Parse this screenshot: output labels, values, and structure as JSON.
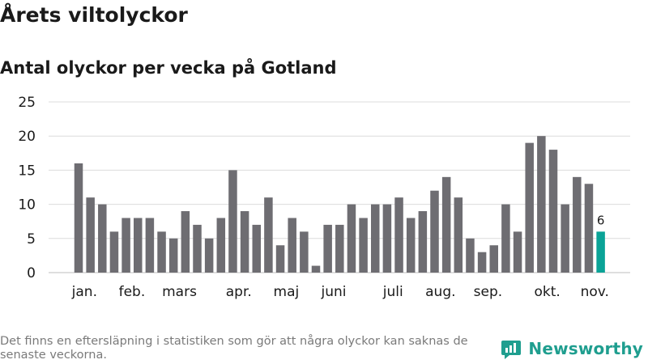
{
  "title": "Årets viltolyckor",
  "subtitle": "Antal olyckor per vecka på Gotland",
  "footnote": "Det finns en eftersläpning i statistiken som gör att några olyckor kan saknas de senaste veckorna.",
  "brand": {
    "name": "Newsworthy",
    "icon": "newsworthy-logo-icon",
    "color": "#1f9e8f"
  },
  "colors": {
    "bar": "#6e6d72",
    "highlight": "#0aa397",
    "grid": "#dcdcdc",
    "text": "#1a1a1a"
  },
  "chart_data": {
    "type": "bar",
    "title": "Antal olyckor per vecka på Gotland",
    "xlabel": "",
    "ylabel": "",
    "ylim": [
      0,
      25
    ],
    "yticks": [
      0,
      5,
      10,
      15,
      20,
      25
    ],
    "grid": true,
    "weeks": [
      1,
      2,
      3,
      4,
      5,
      6,
      7,
      8,
      9,
      10,
      11,
      12,
      13,
      14,
      15,
      16,
      17,
      18,
      19,
      20,
      21,
      22,
      23,
      24,
      25,
      26,
      27,
      28,
      29,
      30,
      31,
      32,
      33,
      34,
      35,
      36,
      37,
      38,
      39,
      40,
      41,
      42,
      43,
      44,
      45
    ],
    "values": [
      16,
      11,
      10,
      6,
      8,
      8,
      8,
      6,
      5,
      9,
      7,
      5,
      8,
      15,
      9,
      7,
      11,
      4,
      8,
      6,
      1,
      7,
      7,
      10,
      8,
      10,
      10,
      11,
      8,
      9,
      12,
      14,
      11,
      5,
      3,
      4,
      10,
      6,
      19,
      20,
      18,
      10,
      14,
      13,
      6
    ],
    "highlight_index": 44,
    "highlight_label": "6",
    "month_labels": [
      {
        "label": "jan.",
        "week": 1.5
      },
      {
        "label": "feb.",
        "week": 5.5
      },
      {
        "label": "mars",
        "week": 9.5
      },
      {
        "label": "apr.",
        "week": 14.5
      },
      {
        "label": "maj",
        "week": 18.5
      },
      {
        "label": "juni",
        "week": 22.5
      },
      {
        "label": "juli",
        "week": 27.5
      },
      {
        "label": "aug.",
        "week": 31.5
      },
      {
        "label": "sep.",
        "week": 35.5
      },
      {
        "label": "okt.",
        "week": 40.5
      },
      {
        "label": "nov.",
        "week": 44.5
      }
    ]
  }
}
